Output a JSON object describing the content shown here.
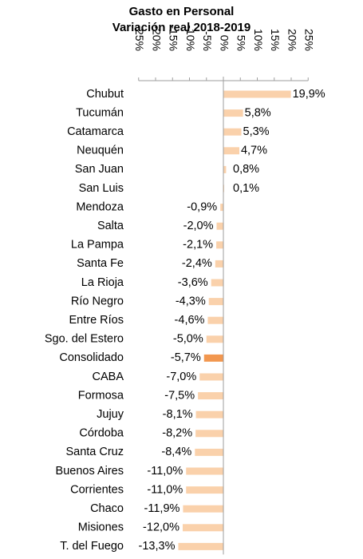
{
  "chart_data": {
    "type": "bar",
    "orientation": "horizontal",
    "title": "Gasto en Personal",
    "subtitle": "Variación real 2018-2019",
    "xlim": [
      -25,
      25
    ],
    "xticks": [
      -25,
      -20,
      -15,
      -10,
      -5,
      0,
      5,
      10,
      15,
      20,
      25
    ],
    "tick_labels": [
      "-25%",
      "-20%",
      "-15%",
      "-10%",
      "-5%",
      "0%",
      "5%",
      "10%",
      "15%",
      "20%",
      "25%"
    ],
    "grid": false,
    "colors": {
      "bar": "#fad1ab",
      "highlight": "#f2974f",
      "axis": "#9e9e9e"
    },
    "highlight_category": "Consolidado",
    "categories": [
      "Chubut",
      "Tucumán",
      "Catamarca",
      "Neuquén",
      "San Juan",
      "San Luis",
      "Mendoza",
      "Salta",
      "La Pampa",
      "Santa Fe",
      "La Rioja",
      "Río Negro",
      "Entre Ríos",
      "Sgo. del Estero",
      "Consolidado",
      "CABA",
      "Formosa",
      "Jujuy",
      "Córdoba",
      "Santa Cruz",
      "Buenos Aires",
      "Corrientes",
      "Chaco",
      "Misiones",
      "T. del Fuego"
    ],
    "values": [
      19.9,
      5.8,
      5.3,
      4.7,
      0.8,
      0.1,
      -0.9,
      -2.0,
      -2.1,
      -2.4,
      -3.6,
      -4.3,
      -4.6,
      -5.0,
      -5.7,
      -7.0,
      -7.5,
      -8.1,
      -8.2,
      -8.4,
      -11.0,
      -11.0,
      -11.9,
      -12.0,
      -13.3
    ],
    "value_labels": [
      "19,9%",
      "5,8%",
      "5,3%",
      "4,7%",
      "0,8%",
      "0,1%",
      "-0,9%",
      "-2,0%",
      "-2,1%",
      "-2,4%",
      "-3,6%",
      "-4,3%",
      "-4,6%",
      "-5,0%",
      "-5,7%",
      "-7,0%",
      "-7,5%",
      "-8,1%",
      "-8,2%",
      "-8,4%",
      "-11,0%",
      "-11,0%",
      "-11,9%",
      "-12,0%",
      "-13,3%"
    ]
  }
}
